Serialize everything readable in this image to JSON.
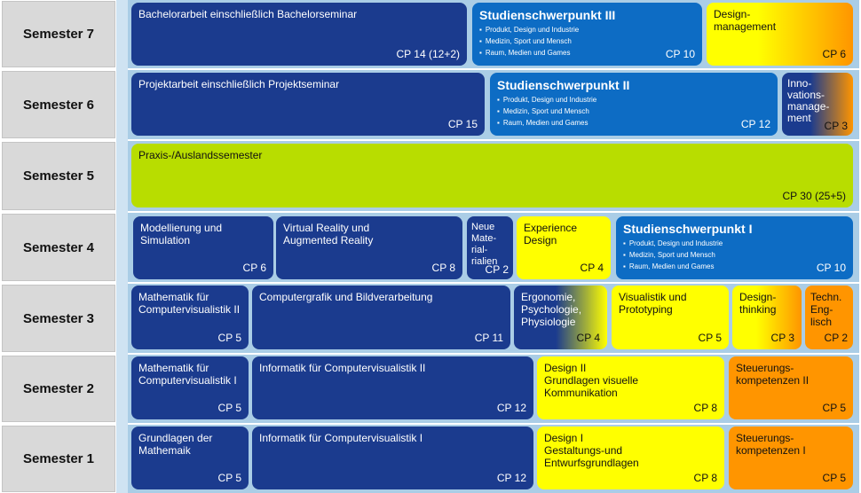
{
  "semesters": [
    "Semester 7",
    "Semester 6",
    "Semester 5",
    "Semester 4",
    "Semester 3",
    "Semester 2",
    "Semester 1"
  ],
  "s7": {
    "bachelor": {
      "title": "Bachelorarbeit einschließlich Bachelorseminar",
      "cp": "CP 14 (12+2)"
    },
    "sp3": {
      "title": "Studienschwerpunkt  III",
      "items": [
        "Produkt, Design und Industrie",
        "Medizin, Sport und Mensch",
        "Raum, Medien und Games"
      ],
      "cp": "CP 10"
    },
    "design_mgmt": {
      "title": "Design-\nmanagement",
      "cp": "CP 6"
    }
  },
  "s6": {
    "projekt": {
      "title": "Projektarbeit einschließlich Projektseminar",
      "cp": "CP 15"
    },
    "sp2": {
      "title": "Studienschwerpunkt  II",
      "items": [
        "Produkt, Design und Industrie",
        "Medizin, Sport und Mensch",
        "Raum, Medien und Games"
      ],
      "cp": "CP 12"
    },
    "innovation": {
      "title": "Inno-\nvations-\nmanage-\nment",
      "cp": "CP 3"
    }
  },
  "s5": {
    "praxis": {
      "title": "Praxis-/Auslandssemester",
      "cp": "CP 30 (25+5)"
    }
  },
  "s4": {
    "modellierung": {
      "title": "Modellierung und\nSimulation",
      "cp": "CP 6"
    },
    "vr": {
      "title": "Virtual Reality und\nAugmented Reality",
      "cp": "CP 8"
    },
    "materialien": {
      "title": "Neue\nMate-\nrial-\nrialien",
      "cp": "CP 2"
    },
    "experience": {
      "title": "Experience\nDesign",
      "cp": "CP 4"
    },
    "sp1": {
      "title": "Studienschwerpunkt  I",
      "items": [
        "Produkt, Design und Industrie",
        "Medizin, Sport und Mensch",
        "Raum, Medien und Games"
      ],
      "cp": "CP 10"
    }
  },
  "s3": {
    "mathe2": {
      "title": "Mathematik für\nComputervisualistik II",
      "cp": "CP 5"
    },
    "cg": {
      "title": "Computergrafik und Bildverarbeitung",
      "cp": "CP 11"
    },
    "ergonomie": {
      "title": "Ergonomie,\nPsychologie,\nPhysiologie",
      "cp": "CP 4"
    },
    "visualistik": {
      "title": "Visualistik und\nPrototyping",
      "cp": "CP 5"
    },
    "designthinking": {
      "title": "Design-\nthinking",
      "cp": "CP 3"
    },
    "englisch": {
      "title": "Techn.\nEng-\nlisch",
      "cp": "CP 2"
    }
  },
  "s2": {
    "mathe1": {
      "title": "Mathematik für\nComputervisualistik I",
      "cp": "CP 5"
    },
    "info2": {
      "title": "Informatik für Computervisualistik II",
      "cp": "CP  12"
    },
    "design2": {
      "title": "Design II\nGrundlagen visuelle\nKommunikation",
      "cp": "CP 8"
    },
    "steuer2": {
      "title": "Steuerungs-\nkompetenzen II",
      "cp": "CP 5"
    }
  },
  "s1": {
    "grundlagen": {
      "title": "Grundlagen der\nMathemaik",
      "cp": "CP 5"
    },
    "info1": {
      "title": "Informatik für Computervisualistik I",
      "cp": "CP 12"
    },
    "design1": {
      "title": "Design I\nGestaltungs-und\nEntwurfsgrundlagen",
      "cp": "CP 8"
    },
    "steuer1": {
      "title": "Steuerungs-\nkompetenzen I",
      "cp": "CP 5"
    }
  },
  "colors": {
    "navy": "#1b3b8e",
    "blue": "#0d6cc4",
    "yellow": "#ffff00",
    "orange": "#ff9500",
    "green": "#b8dd00",
    "row_bg": "#aacde6",
    "label_bg": "#d9d9d9"
  }
}
